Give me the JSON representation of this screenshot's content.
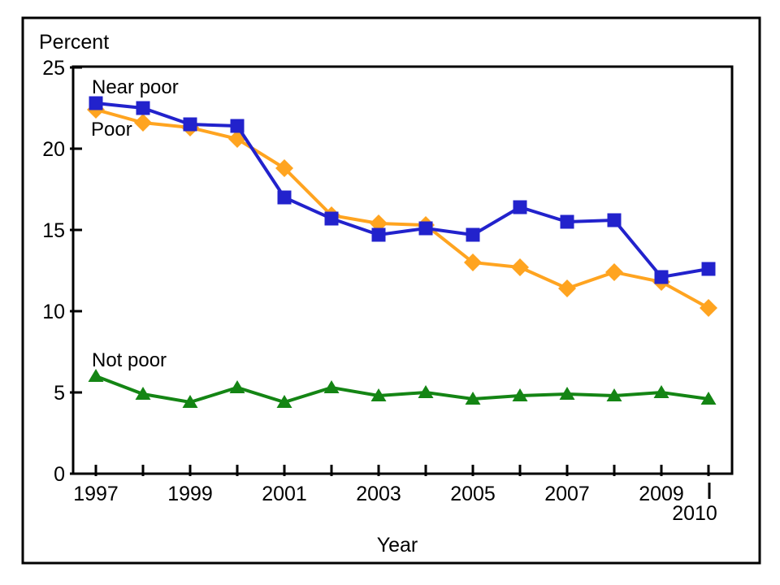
{
  "figure": {
    "y_axis_title": "Percent",
    "x_axis_title": "Year",
    "offset_tick_label": "2010",
    "series_labels": {
      "near_poor": "Near poor",
      "poor": "Poor",
      "not_poor": "Not poor"
    }
  },
  "chart_data": {
    "type": "line",
    "title": "",
    "ylabel": "Percent",
    "xlabel": "Year",
    "x": [
      1997,
      1998,
      1999,
      2000,
      2001,
      2002,
      2003,
      2004,
      2005,
      2006,
      2007,
      2008,
      2009,
      2010
    ],
    "series": [
      {
        "name": "Poor",
        "color": "#FFA420",
        "marker": "diamond",
        "values": [
          22.4,
          21.6,
          21.3,
          20.6,
          18.8,
          15.9,
          15.4,
          15.3,
          13.0,
          12.7,
          11.4,
          12.4,
          11.8,
          10.2
        ]
      },
      {
        "name": "Near poor",
        "color": "#2222CC",
        "marker": "square",
        "values": [
          22.8,
          22.5,
          21.5,
          21.4,
          17.0,
          15.7,
          14.7,
          15.1,
          14.7,
          16.4,
          15.5,
          15.6,
          12.1,
          12.6
        ]
      },
      {
        "name": "Not poor",
        "color": "#148514",
        "marker": "triangle-up",
        "values": [
          6.0,
          4.9,
          4.4,
          5.3,
          4.4,
          5.3,
          4.8,
          5.0,
          4.6,
          4.8,
          4.9,
          4.8,
          5.0,
          4.6
        ]
      }
    ],
    "ylim": [
      0,
      25
    ],
    "yticks": [
      0,
      5,
      10,
      15,
      20,
      25
    ],
    "xticks_every_year": true,
    "xtick_labeled_years": [
      1997,
      1999,
      2001,
      2003,
      2005,
      2007,
      2009
    ],
    "xtick_offset_labeled_year": 2010,
    "grid": false,
    "legend_position": "inline-labels"
  }
}
